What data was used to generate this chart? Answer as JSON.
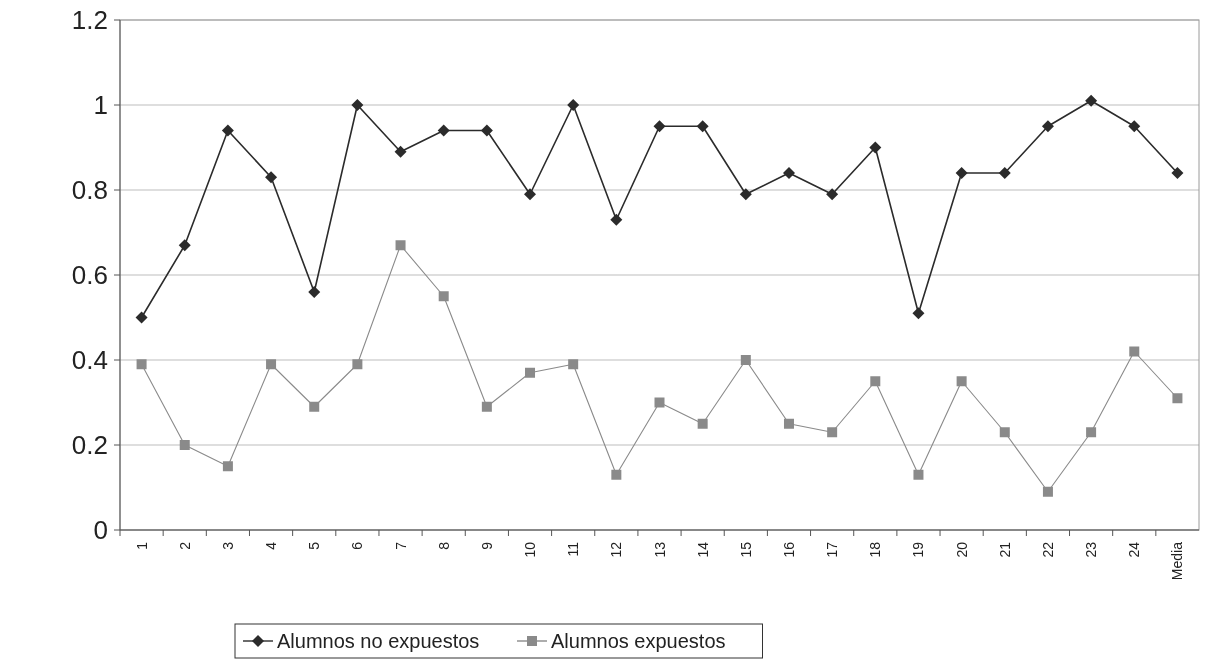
{
  "chart_data": {
    "type": "line",
    "categories": [
      "1",
      "2",
      "3",
      "4",
      "5",
      "6",
      "7",
      "8",
      "9",
      "10",
      "11",
      "12",
      "13",
      "14",
      "15",
      "16",
      "17",
      "18",
      "19",
      "20",
      "21",
      "22",
      "23",
      "24",
      "Media"
    ],
    "series": [
      {
        "name": "Alumnos no expuestos",
        "color": "#2b2b2b",
        "marker": "diamond",
        "values": [
          0.5,
          0.67,
          0.94,
          0.83,
          0.56,
          1.0,
          0.89,
          0.94,
          0.94,
          0.79,
          1.0,
          0.73,
          0.95,
          0.95,
          0.79,
          0.84,
          0.79,
          0.9,
          0.51,
          0.84,
          0.84,
          0.95,
          1.01,
          0.95,
          0.84
        ]
      },
      {
        "name": "Alumnos expuestos",
        "color": "#8a8a8a",
        "marker": "square",
        "values": [
          0.39,
          0.2,
          0.15,
          0.39,
          0.29,
          0.39,
          0.67,
          0.55,
          0.29,
          0.37,
          0.39,
          0.13,
          0.3,
          0.25,
          0.4,
          0.25,
          0.23,
          0.35,
          0.13,
          0.35,
          0.23,
          0.09,
          0.23,
          0.42,
          0.31
        ]
      }
    ],
    "ylim": [
      0,
      1.2
    ],
    "yticks": [
      0,
      0.2,
      0.4,
      0.6,
      0.8,
      1,
      1.2
    ],
    "grid": "y",
    "legend": "bottom"
  }
}
